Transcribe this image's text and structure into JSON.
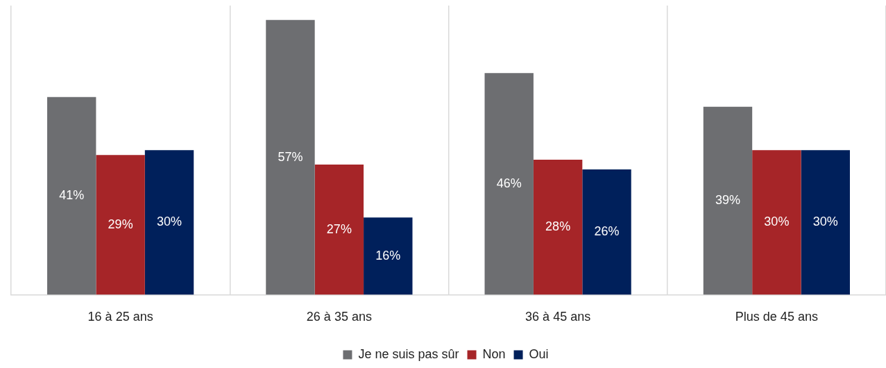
{
  "chart_data": {
    "type": "bar",
    "categories": [
      "16 à 25 ans",
      "26 à 35 ans",
      "36 à 45 ans",
      "Plus de 45 ans"
    ],
    "series": [
      {
        "name": "Je ne suis pas sûr",
        "color": "#6d6e71",
        "values": [
          41,
          57,
          46,
          39
        ],
        "value_labels": [
          "41%",
          "57%",
          "46%",
          "39%"
        ]
      },
      {
        "name": "Non",
        "color": "#a62528",
        "values": [
          29,
          27,
          28,
          30
        ],
        "value_labels": [
          "29%",
          "27%",
          "28%",
          "30%"
        ]
      },
      {
        "name": "Oui",
        "color": "#00205b",
        "values": [
          30,
          16,
          26,
          30
        ],
        "value_labels": [
          "30%",
          "16%",
          "26%",
          "30%"
        ]
      }
    ],
    "relative": false,
    "grid": "x",
    "legend": "bottom"
  }
}
